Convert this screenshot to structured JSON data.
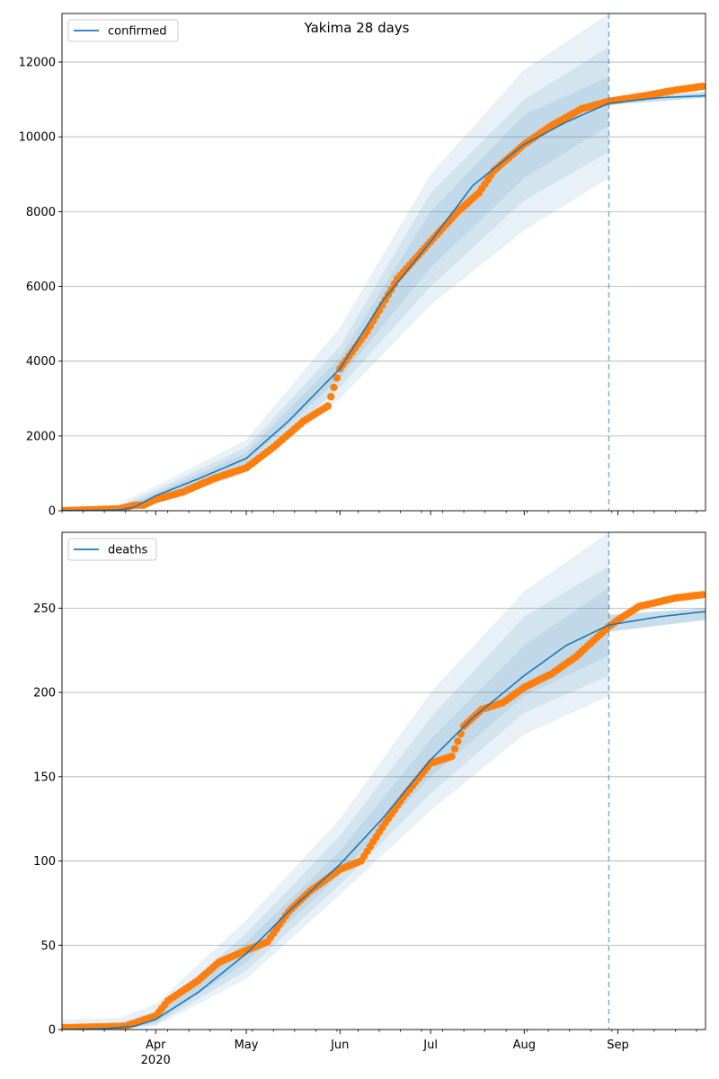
{
  "chart_data": [
    {
      "type": "line",
      "title": "Yakima 28 days",
      "legend": {
        "label": "confirmed",
        "placement": "top-left"
      },
      "x_range": [
        "2020-03-01",
        "2020-09-30"
      ],
      "ylim": [
        0,
        13300
      ],
      "y_ticks": [
        0,
        2000,
        4000,
        6000,
        8000,
        10000,
        12000
      ],
      "grid": "y",
      "forecast_start": "2020-08-29",
      "colors": {
        "model": "#1f77b4",
        "observed": "#ff7f0e",
        "band": "#1f77b4"
      },
      "model": {
        "x": [
          "2020-03-01",
          "2020-03-10",
          "2020-03-20",
          "2020-03-25",
          "2020-04-01",
          "2020-04-15",
          "2020-05-01",
          "2020-05-15",
          "2020-06-01",
          "2020-06-15",
          "2020-07-01",
          "2020-07-15",
          "2020-08-01",
          "2020-08-15",
          "2020-08-29",
          "2020-09-15",
          "2020-09-30"
        ],
        "y": [
          5,
          8,
          20,
          100,
          400,
          850,
          1400,
          2400,
          3800,
          5600,
          7200,
          8700,
          9800,
          10400,
          10900,
          11050,
          11100
        ]
      },
      "bands": [
        {
          "x": [
            "2020-03-20",
            "2020-04-01",
            "2020-05-01",
            "2020-06-01",
            "2020-07-01",
            "2020-08-01",
            "2020-08-29"
          ],
          "low": [
            0,
            200,
            1000,
            3000,
            5500,
            7500,
            8900
          ],
          "high": [
            200,
            650,
            1900,
            4900,
            9000,
            11800,
            13300
          ]
        },
        {
          "x": [
            "2020-03-20",
            "2020-04-01",
            "2020-05-01",
            "2020-06-01",
            "2020-07-01",
            "2020-08-01",
            "2020-08-29"
          ],
          "low": [
            0,
            270,
            1150,
            3300,
            6000,
            8300,
            9600
          ],
          "high": [
            130,
            550,
            1700,
            4400,
            8500,
            11000,
            12400
          ]
        },
        {
          "x": [
            "2020-03-20",
            "2020-04-01",
            "2020-05-01",
            "2020-06-01",
            "2020-07-01",
            "2020-08-01",
            "2020-08-29"
          ],
          "low": [
            0,
            330,
            1280,
            3550,
            6500,
            8900,
            10300
          ],
          "high": [
            80,
            470,
            1550,
            4100,
            8000,
            10600,
            11600
          ]
        }
      ],
      "tail_band": {
        "x": [
          "2020-08-29",
          "2020-09-30"
        ],
        "low": [
          10850,
          11050
        ],
        "high": [
          11000,
          11200
        ]
      },
      "observed": {
        "x": [
          "2020-03-01",
          "2020-03-20",
          "2020-03-25",
          "2020-03-28",
          "2020-04-01",
          "2020-04-10",
          "2020-04-20",
          "2020-05-01",
          "2020-05-10",
          "2020-05-20",
          "2020-05-28",
          "2020-06-01",
          "2020-06-10",
          "2020-06-20",
          "2020-07-01",
          "2020-07-10",
          "2020-07-17",
          "2020-07-22",
          "2020-08-01",
          "2020-08-10",
          "2020-08-20",
          "2020-08-29",
          "2020-09-10",
          "2020-09-20",
          "2020-09-29"
        ],
        "y": [
          0,
          50,
          150,
          150,
          300,
          500,
          850,
          1150,
          1700,
          2400,
          2800,
          3800,
          4800,
          6200,
          7200,
          8000,
          8500,
          9100,
          9800,
          10300,
          10750,
          10950,
          11100,
          11250,
          11350
        ]
      }
    },
    {
      "type": "line",
      "legend": {
        "label": "deaths",
        "placement": "top-left"
      },
      "x_range": [
        "2020-03-01",
        "2020-09-30"
      ],
      "ylim": [
        0,
        295
      ],
      "y_ticks": [
        0,
        50,
        100,
        150,
        200,
        250
      ],
      "grid": "y",
      "forecast_start": "2020-08-29",
      "x_ticks": [
        {
          "date": "2020-04-01",
          "label": "Apr",
          "sublabel": "2020"
        },
        {
          "date": "2020-05-01",
          "label": "May"
        },
        {
          "date": "2020-06-01",
          "label": "Jun"
        },
        {
          "date": "2020-07-01",
          "label": "Jul"
        },
        {
          "date": "2020-08-01",
          "label": "Aug"
        },
        {
          "date": "2020-09-01",
          "label": "Sep"
        }
      ],
      "colors": {
        "model": "#1f77b4",
        "observed": "#ff7f0e",
        "band": "#1f77b4"
      },
      "model": {
        "x": [
          "2020-03-01",
          "2020-03-15",
          "2020-03-25",
          "2020-04-01",
          "2020-04-15",
          "2020-05-01",
          "2020-05-15",
          "2020-06-01",
          "2020-06-15",
          "2020-07-01",
          "2020-07-15",
          "2020-08-01",
          "2020-08-15",
          "2020-08-29",
          "2020-09-15",
          "2020-09-30"
        ],
        "y": [
          0,
          0.5,
          2,
          6,
          22,
          45,
          70,
          98,
          125,
          160,
          185,
          210,
          228,
          240,
          245,
          248
        ]
      },
      "bands": [
        {
          "x": [
            "2020-03-01",
            "2020-03-20",
            "2020-04-01",
            "2020-05-01",
            "2020-06-01",
            "2020-07-01",
            "2020-08-01",
            "2020-08-29"
          ],
          "low": [
            0,
            0,
            2,
            30,
            80,
            130,
            175,
            198
          ],
          "high": [
            6,
            7,
            15,
            65,
            125,
            200,
            260,
            295
          ]
        },
        {
          "x": [
            "2020-03-01",
            "2020-03-20",
            "2020-04-01",
            "2020-05-01",
            "2020-06-01",
            "2020-07-01",
            "2020-08-01",
            "2020-08-29"
          ],
          "low": [
            0,
            0,
            3,
            35,
            86,
            140,
            188,
            210
          ],
          "high": [
            3,
            4,
            11,
            57,
            115,
            185,
            245,
            275
          ]
        },
        {
          "x": [
            "2020-03-01",
            "2020-03-20",
            "2020-04-01",
            "2020-05-01",
            "2020-06-01",
            "2020-07-01",
            "2020-08-01",
            "2020-08-29"
          ],
          "low": [
            0,
            0,
            4,
            40,
            92,
            150,
            198,
            222
          ],
          "high": [
            1,
            2,
            8,
            52,
            106,
            172,
            228,
            262
          ]
        }
      ],
      "tail_band": {
        "x": [
          "2020-08-29",
          "2020-09-30"
        ],
        "low": [
          236,
          243
        ],
        "high": [
          246,
          250
        ]
      },
      "observed": {
        "x": [
          "2020-03-01",
          "2020-03-22",
          "2020-04-01",
          "2020-04-05",
          "2020-04-15",
          "2020-04-22",
          "2020-05-01",
          "2020-05-08",
          "2020-05-15",
          "2020-05-22",
          "2020-06-01",
          "2020-06-08",
          "2020-06-15",
          "2020-06-22",
          "2020-07-01",
          "2020-07-08",
          "2020-07-12",
          "2020-07-18",
          "2020-07-25",
          "2020-08-01",
          "2020-08-10",
          "2020-08-18",
          "2020-08-29",
          "2020-09-01",
          "2020-09-08",
          "2020-09-20",
          "2020-09-29"
        ],
        "y": [
          1,
          2,
          8,
          17,
          29,
          40,
          47,
          52,
          70,
          82,
          95,
          100,
          120,
          138,
          158,
          162,
          180,
          190,
          194,
          203,
          211,
          221,
          239,
          243,
          251,
          256,
          258
        ]
      }
    }
  ]
}
